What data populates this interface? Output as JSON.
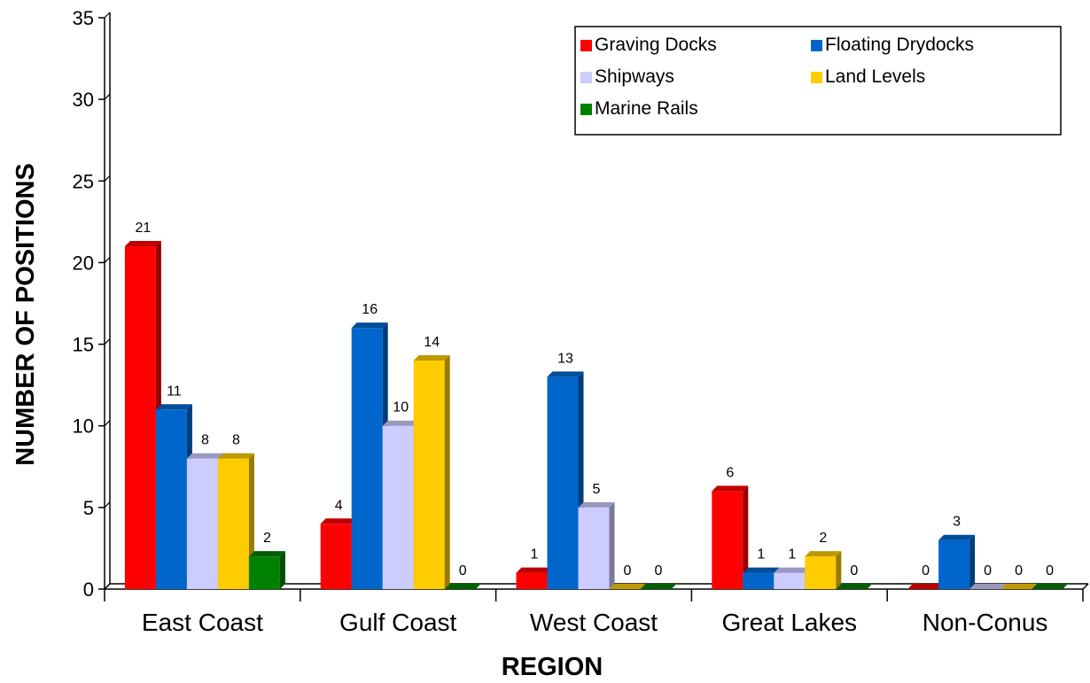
{
  "chart_data": {
    "type": "bar",
    "title": "",
    "xlabel": "REGION",
    "ylabel": "NUMBER OF POSITIONS",
    "ylim": [
      0,
      35
    ],
    "yticks": [
      "0",
      "5",
      "10",
      "15",
      "20",
      "25",
      "30",
      "35"
    ],
    "categories": [
      "East Coast",
      "Gulf Coast",
      "West Coast",
      "Great Lakes",
      "Non-Conus"
    ],
    "series": [
      {
        "name": "Graving Docks",
        "color": "#ff0000",
        "values": [
          21,
          4,
          1,
          6,
          0
        ]
      },
      {
        "name": "Floating Drydocks",
        "color": "#0066cc",
        "values": [
          11,
          16,
          13,
          1,
          3
        ]
      },
      {
        "name": "Shipways",
        "color": "#ccccff",
        "values": [
          8,
          10,
          5,
          1,
          0
        ]
      },
      {
        "name": "Land Levels",
        "color": "#ffcc00",
        "values": [
          8,
          14,
          0,
          2,
          0
        ]
      },
      {
        "name": "Marine Rails",
        "color": "#008000",
        "values": [
          2,
          0,
          0,
          0,
          0
        ]
      }
    ],
    "data_labels": [
      [
        "21",
        "11",
        "8",
        "8",
        "2"
      ],
      [
        "4",
        "16",
        "10",
        "14",
        "0"
      ],
      [
        "1",
        "13",
        "5",
        "0",
        "0"
      ],
      [
        "6",
        "1",
        "1",
        "2",
        "0"
      ],
      [
        "0",
        "3",
        "0",
        "0",
        "0"
      ]
    ],
    "grid": false,
    "legend_position": "top-right",
    "legend_items": [
      "Graving Docks",
      "Floating Drydocks",
      "Shipways",
      "Land Levels",
      "Marine Rails"
    ]
  }
}
